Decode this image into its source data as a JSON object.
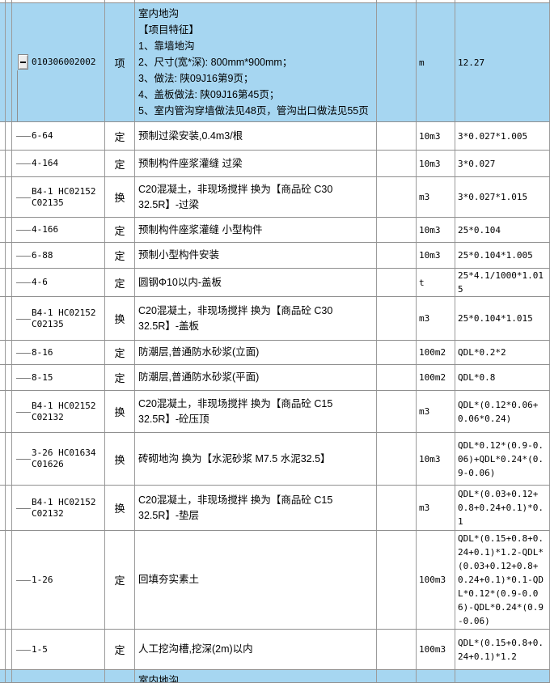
{
  "colors": {
    "selection_blue": "#a6d6f1",
    "grid_line_vertical": "#9b9b9b",
    "grid_line_horizontal": "#8f8f8f",
    "text": "#000000"
  },
  "icons": {
    "collapse_button": "minus-box-icon",
    "tree_branch": "dash-line"
  },
  "rows": [
    {
      "code": "010306002002",
      "type": "项",
      "desc": "室内地沟\n【项目特征】\n1、靠墙地沟\n2、尺寸(宽*深): 800mm*900mm；\n3、做法: 陕09J16第9页；\n4、盖板做法: 陕09J16第45页；\n5、室内管沟穿墙做法见48页，管沟出口做法见55页",
      "unit": "m",
      "expr": "12.27",
      "selected": true,
      "expand": true,
      "partial": false
    },
    {
      "code": "6-64",
      "type": "定",
      "desc": "预制过梁安装,0.4m3/根",
      "unit": "10m3",
      "expr": "3*0.027*1.005",
      "selected": false,
      "expand": false,
      "partial": false
    },
    {
      "code": "4-164",
      "type": "定",
      "desc": "预制构件座浆灌缝 过梁",
      "unit": "10m3",
      "expr": "3*0.027",
      "selected": false,
      "expand": false,
      "partial": false
    },
    {
      "code": "B4-1 HC02152 C02135",
      "type": "换",
      "desc": "C20混凝土，非现场搅拌 换为【商品砼 C30 32.5R】-过梁",
      "unit": "m3",
      "expr": "3*0.027*1.015",
      "selected": false,
      "expand": false,
      "partial": false
    },
    {
      "code": "4-166",
      "type": "定",
      "desc": "预制构件座浆灌缝 小型构件",
      "unit": "10m3",
      "expr": "25*0.104",
      "selected": false,
      "expand": false,
      "partial": false
    },
    {
      "code": "6-88",
      "type": "定",
      "desc": "预制小型构件安装",
      "unit": "10m3",
      "expr": "25*0.104*1.005",
      "selected": false,
      "expand": false,
      "partial": false
    },
    {
      "code": "4-6",
      "type": "定",
      "desc": "圆钢Φ10以内-盖板",
      "unit": "t",
      "expr": "25*4.1/1000*1.015",
      "selected": false,
      "expand": false,
      "partial": false
    },
    {
      "code": "B4-1 HC02152 C02135",
      "type": "换",
      "desc": "C20混凝土，非现场搅拌 换为【商品砼 C30 32.5R】-盖板",
      "unit": "m3",
      "expr": "25*0.104*1.015",
      "selected": false,
      "expand": false,
      "partial": false
    },
    {
      "code": "8-16",
      "type": "定",
      "desc": "防潮层,普通防水砂浆(立面)",
      "unit": "100m2",
      "expr": "QDL*0.2*2",
      "selected": false,
      "expand": false,
      "partial": false
    },
    {
      "code": "8-15",
      "type": "定",
      "desc": "防潮层,普通防水砂浆(平面)",
      "unit": "100m2",
      "expr": "QDL*0.8",
      "selected": false,
      "expand": false,
      "partial": false
    },
    {
      "code": "B4-1 HC02152 C02132",
      "type": "换",
      "desc": "C20混凝土，非现场搅拌 换为【商品砼 C15 32.5R】-砼压顶",
      "unit": "m3",
      "expr": "QDL*(0.12*0.06+0.06*0.24)",
      "selected": false,
      "expand": false,
      "partial": false
    },
    {
      "code": "3-26 HC01634 C01626",
      "type": "换",
      "desc": "砖砌地沟 换为【水泥砂浆 M7.5 水泥32.5】",
      "unit": "10m3",
      "expr": "QDL*0.12*(0.9-0.06)+QDL*0.24*(0.9-0.06)",
      "selected": false,
      "expand": false,
      "partial": false
    },
    {
      "code": "B4-1 HC02152 C02132",
      "type": "换",
      "desc": "C20混凝土，非现场搅拌 换为【商品砼 C15 32.5R】-垫层",
      "unit": "m3",
      "expr": "QDL*(0.03+0.12+0.8+0.24+0.1)*0.1",
      "selected": false,
      "expand": false,
      "partial": false
    },
    {
      "code": "1-26",
      "type": "定",
      "desc": "回填夯实素土",
      "unit": "100m3",
      "expr": "QDL*(0.15+0.8+0.24+0.1)*1.2-QDL*(0.03+0.12+0.8+0.24+0.1)*0.1-QDL*0.12*(0.9-0.06)-QDL*0.24*(0.9-0.06)",
      "selected": false,
      "expand": false,
      "partial": false
    },
    {
      "code": "1-5",
      "type": "定",
      "desc": "人工挖沟槽,挖深(2m)以内",
      "unit": "100m3",
      "expr": "QDL*(0.15+0.8+0.24+0.1)*1.2",
      "selected": false,
      "expand": false,
      "partial": false
    },
    {
      "code": "",
      "type": "",
      "desc": "室内地沟",
      "unit": "",
      "expr": "",
      "selected": true,
      "expand": false,
      "partial": true
    }
  ]
}
